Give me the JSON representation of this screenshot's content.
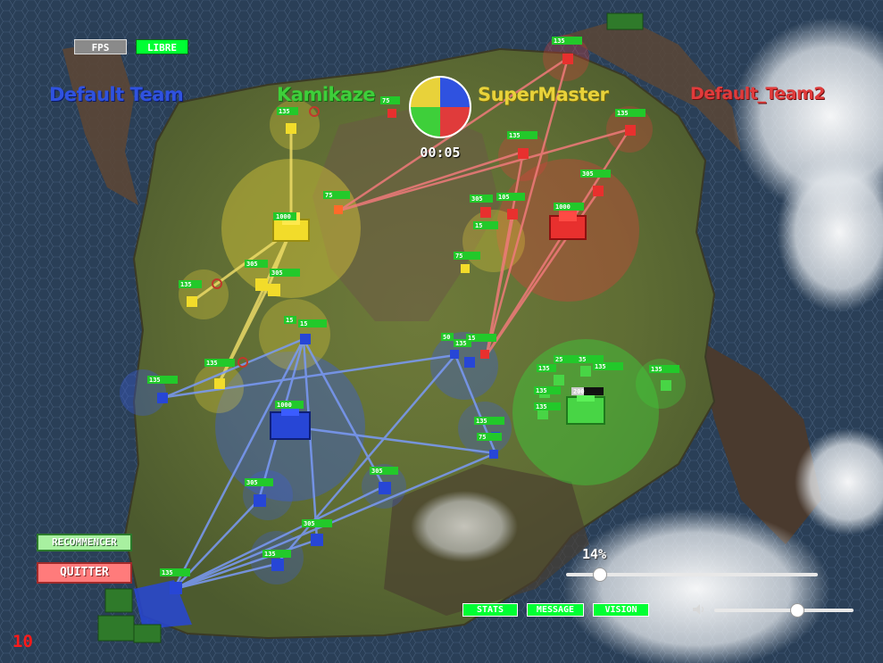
{
  "hud": {
    "fps_label": "FPS",
    "mode_label": "LIBRE",
    "timer": "00:05",
    "zoom_percent": "14%",
    "zoom_value": 14,
    "volume_value": 0.6,
    "counter": "10"
  },
  "teams": [
    {
      "name": "Default Team",
      "color": "#2f52e0"
    },
    {
      "name": "Kamikaze",
      "color": "#3ecf3a"
    },
    {
      "name": "SuperMaster",
      "color": "#e8d23a"
    },
    {
      "name": "Default_Team2",
      "color": "#e03b3b"
    }
  ],
  "colors": {
    "blue": "#2f52e0",
    "green": "#3ecf3a",
    "yellow": "#e8d23a",
    "red": "#e03b3b",
    "button_green": "#00ff33",
    "button_red": "#ff7b7b"
  },
  "buttons": {
    "restart": "RECOMMENCER",
    "quit": "QUITTER",
    "stats": "STATS",
    "message": "MESSAGE",
    "vision": "VISION"
  },
  "icons": {
    "volume": "speaker-icon",
    "team_clock": "team-pie-icon"
  },
  "units": {
    "yellow_base": "1000",
    "red_base": "1000",
    "blue_base": "1000",
    "green_base": "200",
    "tag_135": "135",
    "tag_305": "305",
    "tag_105": "105",
    "tag_75": "75",
    "tag_15": "15",
    "tag_50": "50",
    "tag_25": "25",
    "tag_35": "35"
  }
}
